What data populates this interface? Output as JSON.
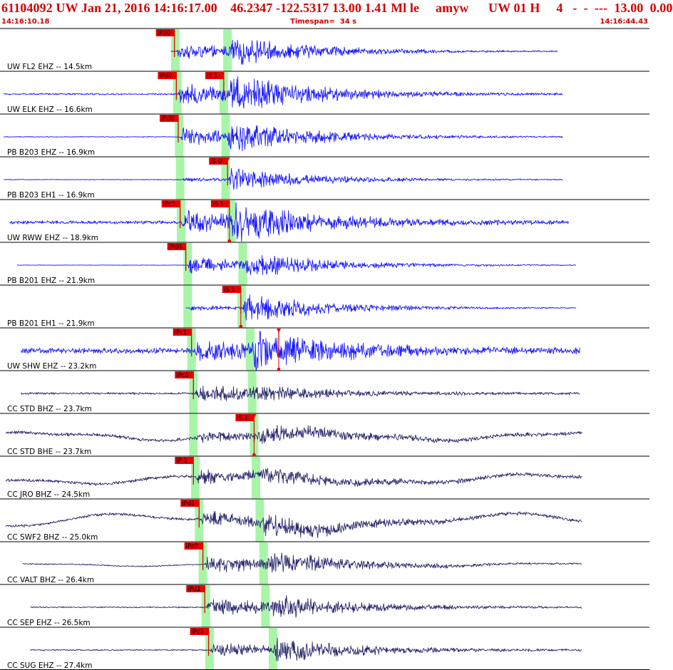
{
  "header": {
    "event_line": "61104092 UW Jan 21, 2016 14:16:17.00    46.2347 -122.5317 13.00 1.41 Ml le     amyw      UW 01 H     4   -  -  ---  13.00  0.00",
    "start_time": "14:16:10.18",
    "timespan_label": "Timespan=  34 s",
    "end_time": "14:16:44.43"
  },
  "chart_data": {
    "type": "line",
    "title": "",
    "time_range_s": [
      0,
      34.25
    ],
    "colors": {
      "blue_trace": "#1a1aff",
      "dark_trace": "#2a2a6e",
      "pick_flag": "#e60000",
      "pick_band": "#a8f5a8",
      "header_text": "#d40000",
      "grid": "#000000"
    },
    "traces": [
      {
        "label": "UW FL2 EHZ -- 14.5km",
        "color": "blue",
        "amp": 0.5,
        "noise": 0.03,
        "drift": 0,
        "start": 9.0,
        "end": 29.4,
        "picks": [
          {
            "label": "iPd0",
            "t": 9.2,
            "band": 9.25
          }
        ],
        "bands": [
          9.25,
          12.0
        ],
        "arrivals": [
          {
            "t": 9.3,
            "strength": 0.7
          },
          {
            "t": 12.1,
            "strength": 0.9
          }
        ]
      },
      {
        "label": "UW ELK EHZ -- 16.6km",
        "color": "blue",
        "amp": 0.6,
        "noise": 0.06,
        "drift": 0,
        "start": 0.2,
        "end": 29.7,
        "picks": [
          {
            "label": "iPd0",
            "t": 9.3,
            "band": 9.35
          },
          {
            "label": "iS 1",
            "t": 11.8,
            "band": 11.8
          }
        ],
        "bands": [
          9.35,
          11.8
        ],
        "arrivals": [
          {
            "t": 9.4,
            "strength": 0.8
          },
          {
            "t": 11.9,
            "strength": 1.0
          }
        ]
      },
      {
        "label": "PB B203 EHZ -- 16.9km",
        "color": "blue",
        "amp": 0.55,
        "noise": 0.03,
        "drift": 0,
        "start": 0.2,
        "end": 29.7,
        "picks": [
          {
            "label": "iPd0",
            "t": 9.4,
            "band": 9.45
          }
        ],
        "bands": [
          9.45,
          11.9
        ],
        "arrivals": [
          {
            "t": 9.5,
            "strength": 0.7
          },
          {
            "t": 12.0,
            "strength": 0.9
          }
        ]
      },
      {
        "label": "PB B203 EH1 -- 16.9km",
        "color": "blue",
        "amp": 0.5,
        "noise": 0.03,
        "drift": 0,
        "start": 0.2,
        "end": 29.7,
        "picks": [
          {
            "label": "iS 0",
            "t": 12.0,
            "band": 11.9,
            "marker": "down"
          }
        ],
        "bands": [
          9.5,
          11.9
        ],
        "arrivals": [
          {
            "t": 9.6,
            "strength": 0.15
          },
          {
            "t": 12.0,
            "strength": 0.9
          }
        ]
      },
      {
        "label": "UW RWW EHZ -- 18.9km",
        "color": "blue",
        "amp": 0.6,
        "noise": 0.12,
        "drift": 0,
        "start": 0.5,
        "end": 30.0,
        "picks": [
          {
            "label": "iPc1",
            "t": 9.5,
            "band": 9.55
          },
          {
            "label": "iS 1",
            "t": 12.1,
            "band": 12.2,
            "marker": "up"
          }
        ],
        "bands": [
          9.55,
          12.2
        ],
        "arrivals": [
          {
            "t": 9.6,
            "strength": 0.8
          },
          {
            "t": 12.2,
            "strength": 1.0
          }
        ]
      },
      {
        "label": "PB B201 EHZ -- 21.9km",
        "color": "blue",
        "amp": 0.5,
        "noise": 0.02,
        "drift": 0,
        "start": 0.9,
        "end": 30.4,
        "picks": [
          {
            "label": "iPd0",
            "t": 9.8,
            "band": 9.9
          }
        ],
        "bands": [
          9.9,
          12.8
        ],
        "arrivals": [
          {
            "t": 9.9,
            "strength": 0.8
          },
          {
            "t": 12.9,
            "strength": 0.7
          }
        ]
      },
      {
        "label": "PB B201 EH1 -- 21.9km",
        "color": "blue",
        "amp": 0.55,
        "noise": 0.02,
        "drift": 0,
        "start": 9.8,
        "end": 30.4,
        "picks": [
          {
            "label": "iS 1",
            "t": 12.7,
            "band": 12.75,
            "marker": "up"
          }
        ],
        "bands": [
          9.9,
          12.75
        ],
        "arrivals": [
          {
            "t": 9.9,
            "strength": 0.2
          },
          {
            "t": 12.8,
            "strength": 1.0
          }
        ]
      },
      {
        "label": "UW SHW EHZ -- 23.2km",
        "color": "blue",
        "amp": 0.6,
        "noise": 0.2,
        "drift": 0,
        "start": 1.1,
        "end": 30.6,
        "picks": [
          {
            "label": "iPc1",
            "t": 10.1,
            "band": 10.1
          },
          {
            "label": "",
            "t": 14.7,
            "band": null,
            "marker": "both"
          }
        ],
        "bands": [
          10.1,
          13.2
        ],
        "arrivals": [
          {
            "t": 10.3,
            "strength": 0.7
          },
          {
            "t": 13.3,
            "strength": 1.0
          }
        ]
      },
      {
        "label": "CC STD BHZ -- 23.7km",
        "color": "dark",
        "amp": 0.45,
        "noise": 0.1,
        "drift": 0,
        "start": 1.1,
        "end": 30.6,
        "picks": [
          {
            "label": "iPc0",
            "t": 10.2,
            "band": 10.2
          }
        ],
        "bands": [
          10.2,
          13.3
        ],
        "arrivals": [
          {
            "t": 10.25,
            "strength": 0.9
          },
          {
            "t": 13.3,
            "strength": 0.25
          }
        ]
      },
      {
        "label": "CC STD BHE -- 23.7km",
        "color": "dark",
        "amp": 0.45,
        "noise": 0.16,
        "drift": 0.3,
        "start": 0.3,
        "end": 30.7,
        "picks": [
          {
            "label": "iS 1",
            "t": 13.4,
            "band": 13.4,
            "marker": "both"
          }
        ],
        "bands": [
          10.2,
          13.4
        ],
        "arrivals": [
          {
            "t": 10.3,
            "strength": 0.35
          },
          {
            "t": 13.5,
            "strength": 0.6
          }
        ]
      },
      {
        "label": "CC JRO BHZ -- 24.5km",
        "color": "dark",
        "amp": 0.45,
        "noise": 0.14,
        "drift": 0.35,
        "start": 0.3,
        "end": 30.7,
        "picks": [
          {
            "label": "iP 1",
            "t": 10.2,
            "band": 10.3
          }
        ],
        "bands": [
          10.3,
          13.5
        ],
        "arrivals": [
          {
            "t": 10.3,
            "strength": 0.6
          },
          {
            "t": 13.6,
            "strength": 0.5
          }
        ]
      },
      {
        "label": "CC SWF2 BHZ -- 25.0km",
        "color": "dark",
        "amp": 0.45,
        "noise": 0.12,
        "drift": 0.55,
        "start": 0.3,
        "end": 30.7,
        "picks": [
          {
            "label": "iPd1",
            "t": 10.5,
            "band": 10.5
          }
        ],
        "bands": [
          10.5,
          13.7
        ],
        "arrivals": [
          {
            "t": 10.6,
            "strength": 0.7
          },
          {
            "t": 13.8,
            "strength": 0.8
          }
        ]
      },
      {
        "label": "CC VALT BHZ -- 26.4km",
        "color": "dark",
        "amp": 0.45,
        "noise": 0.05,
        "drift": 0.12,
        "start": 1.2,
        "end": 30.7,
        "picks": [
          {
            "label": "iPc0",
            "t": 10.7,
            "band": 10.7
          }
        ],
        "bands": [
          10.7,
          13.9
        ],
        "arrivals": [
          {
            "t": 10.8,
            "strength": 0.9
          },
          {
            "t": 14.0,
            "strength": 0.7
          }
        ]
      },
      {
        "label": "CC SEP EHZ -- 26.5km",
        "color": "dark",
        "amp": 0.45,
        "noise": 0.06,
        "drift": 0,
        "start": 1.6,
        "end": 30.7,
        "picks": [
          {
            "label": "iPd1",
            "t": 10.8,
            "band": 10.85
          }
        ],
        "bands": [
          10.85,
          14.0
        ],
        "arrivals": [
          {
            "t": 10.9,
            "strength": 0.9
          },
          {
            "t": 14.1,
            "strength": 0.8
          }
        ]
      },
      {
        "label": "CC SUG EHZ -- 27.4km",
        "color": "dark",
        "amp": 0.45,
        "noise": 0.06,
        "drift": 0,
        "start": 1.6,
        "end": 30.7,
        "picks": [
          {
            "label": "iPc1",
            "t": 11.0,
            "band": 11.05
          }
        ],
        "bands": [
          11.05,
          14.4
        ],
        "arrivals": [
          {
            "t": 11.1,
            "strength": 0.7
          },
          {
            "t": 14.4,
            "strength": 0.9
          }
        ]
      }
    ]
  }
}
